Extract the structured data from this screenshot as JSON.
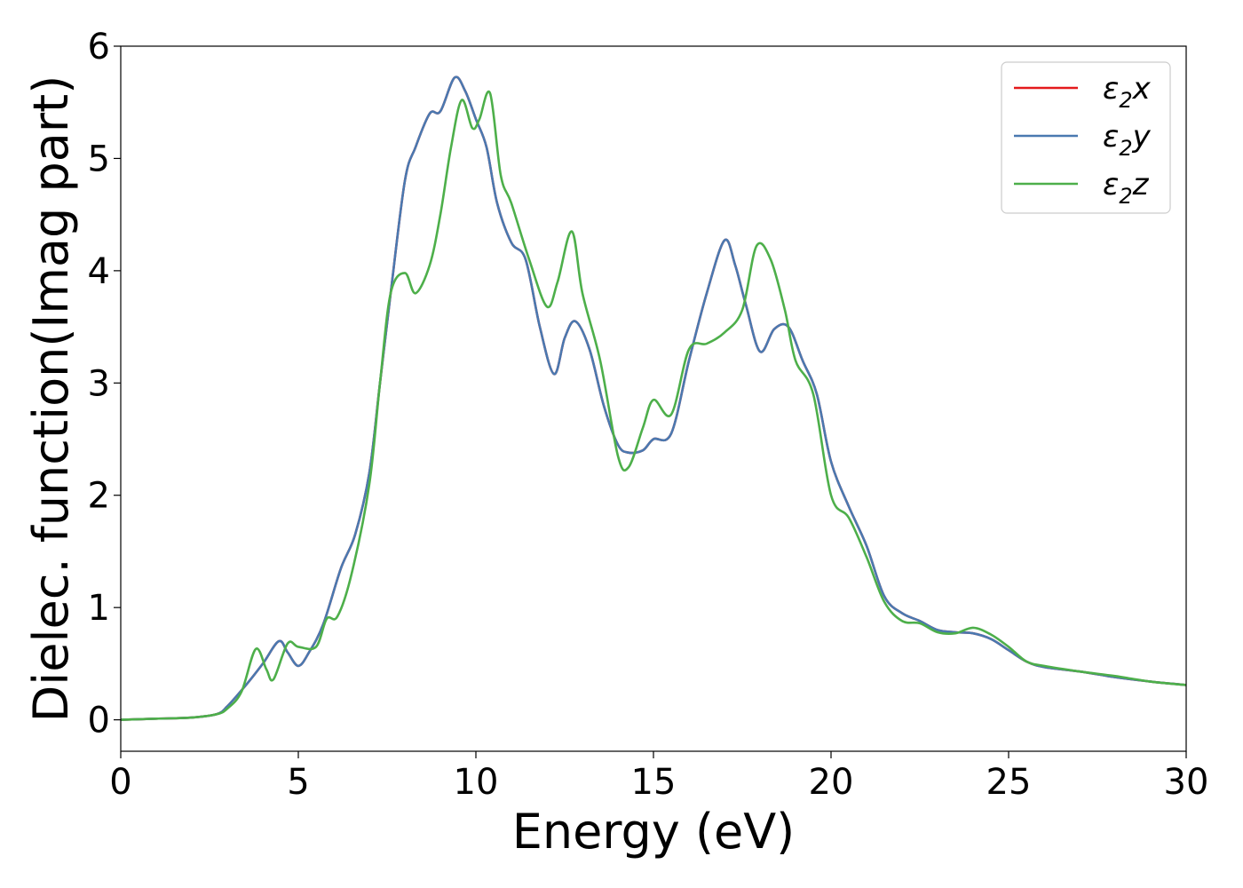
{
  "chart_data": {
    "type": "line",
    "xlabel": "Energy (eV)",
    "ylabel": "Dielec. function(Imag part)",
    "xlim": [
      0,
      30
    ],
    "ylim": [
      -0.28,
      6.0
    ],
    "xticks": [
      "0",
      "5",
      "10",
      "15",
      "20",
      "25",
      "30"
    ],
    "yticks": [
      "0",
      "1",
      "2",
      "3",
      "4",
      "5",
      "6"
    ],
    "grid": false,
    "legend_position": "top-right",
    "series": [
      {
        "name": "ε2x",
        "legend_main": "ε",
        "legend_sub": "2",
        "legend_suffix": "x",
        "color": "#e41a1c",
        "points": [
          [
            0,
            0
          ],
          [
            1,
            0.01
          ],
          [
            2,
            0.02
          ],
          [
            2.7,
            0.05
          ],
          [
            3,
            0.12
          ],
          [
            3.5,
            0.3
          ],
          [
            4,
            0.5
          ],
          [
            4.45,
            0.7
          ],
          [
            4.7,
            0.6
          ],
          [
            5,
            0.48
          ],
          [
            5.3,
            0.6
          ],
          [
            5.7,
            0.85
          ],
          [
            6.2,
            1.35
          ],
          [
            6.6,
            1.65
          ],
          [
            7,
            2.2
          ],
          [
            7.3,
            3
          ],
          [
            7.6,
            3.8
          ],
          [
            8,
            4.8
          ],
          [
            8.3,
            5.1
          ],
          [
            8.7,
            5.4
          ],
          [
            9,
            5.42
          ],
          [
            9.4,
            5.72
          ],
          [
            9.7,
            5.6
          ],
          [
            10,
            5.35
          ],
          [
            10.3,
            5.1
          ],
          [
            10.6,
            4.6
          ],
          [
            11,
            4.25
          ],
          [
            11.4,
            4.1
          ],
          [
            11.8,
            3.5
          ],
          [
            12.2,
            3.08
          ],
          [
            12.5,
            3.4
          ],
          [
            12.8,
            3.55
          ],
          [
            13.2,
            3.3
          ],
          [
            13.6,
            2.8
          ],
          [
            14,
            2.45
          ],
          [
            14.3,
            2.38
          ],
          [
            14.7,
            2.4
          ],
          [
            15,
            2.5
          ],
          [
            15.5,
            2.55
          ],
          [
            16,
            3.2
          ],
          [
            16.5,
            3.8
          ],
          [
            17,
            4.27
          ],
          [
            17.3,
            4.05
          ],
          [
            17.6,
            3.7
          ],
          [
            18,
            3.28
          ],
          [
            18.4,
            3.48
          ],
          [
            18.8,
            3.5
          ],
          [
            19.2,
            3.2
          ],
          [
            19.6,
            2.9
          ],
          [
            20,
            2.3
          ],
          [
            20.5,
            1.9
          ],
          [
            21,
            1.55
          ],
          [
            21.5,
            1.1
          ],
          [
            22,
            0.95
          ],
          [
            22.5,
            0.88
          ],
          [
            23,
            0.8
          ],
          [
            23.5,
            0.78
          ],
          [
            24,
            0.77
          ],
          [
            24.5,
            0.72
          ],
          [
            25,
            0.62
          ],
          [
            25.5,
            0.52
          ],
          [
            26,
            0.47
          ],
          [
            27,
            0.43
          ],
          [
            28,
            0.38
          ],
          [
            29,
            0.34
          ],
          [
            30,
            0.31
          ]
        ]
      },
      {
        "name": "ε2y",
        "legend_main": "ε",
        "legend_sub": "2",
        "legend_suffix": "y",
        "color": "#4a79b0",
        "points": [
          [
            0,
            0
          ],
          [
            1,
            0.01
          ],
          [
            2,
            0.02
          ],
          [
            2.7,
            0.05
          ],
          [
            3,
            0.12
          ],
          [
            3.5,
            0.3
          ],
          [
            4,
            0.5
          ],
          [
            4.45,
            0.7
          ],
          [
            4.7,
            0.6
          ],
          [
            5,
            0.48
          ],
          [
            5.3,
            0.6
          ],
          [
            5.7,
            0.85
          ],
          [
            6.2,
            1.35
          ],
          [
            6.6,
            1.65
          ],
          [
            7,
            2.2
          ],
          [
            7.3,
            3
          ],
          [
            7.6,
            3.8
          ],
          [
            8,
            4.8
          ],
          [
            8.3,
            5.1
          ],
          [
            8.7,
            5.4
          ],
          [
            9,
            5.42
          ],
          [
            9.4,
            5.72
          ],
          [
            9.7,
            5.6
          ],
          [
            10,
            5.35
          ],
          [
            10.3,
            5.1
          ],
          [
            10.6,
            4.6
          ],
          [
            11,
            4.25
          ],
          [
            11.4,
            4.1
          ],
          [
            11.8,
            3.5
          ],
          [
            12.2,
            3.08
          ],
          [
            12.5,
            3.4
          ],
          [
            12.8,
            3.55
          ],
          [
            13.2,
            3.3
          ],
          [
            13.6,
            2.8
          ],
          [
            14,
            2.45
          ],
          [
            14.3,
            2.38
          ],
          [
            14.7,
            2.4
          ],
          [
            15,
            2.5
          ],
          [
            15.5,
            2.55
          ],
          [
            16,
            3.2
          ],
          [
            16.5,
            3.8
          ],
          [
            17,
            4.27
          ],
          [
            17.3,
            4.05
          ],
          [
            17.6,
            3.7
          ],
          [
            18,
            3.28
          ],
          [
            18.4,
            3.48
          ],
          [
            18.8,
            3.5
          ],
          [
            19.2,
            3.2
          ],
          [
            19.6,
            2.9
          ],
          [
            20,
            2.3
          ],
          [
            20.5,
            1.9
          ],
          [
            21,
            1.55
          ],
          [
            21.5,
            1.1
          ],
          [
            22,
            0.95
          ],
          [
            22.5,
            0.88
          ],
          [
            23,
            0.8
          ],
          [
            23.5,
            0.78
          ],
          [
            24,
            0.77
          ],
          [
            24.5,
            0.72
          ],
          [
            25,
            0.62
          ],
          [
            25.5,
            0.52
          ],
          [
            26,
            0.47
          ],
          [
            27,
            0.43
          ],
          [
            28,
            0.38
          ],
          [
            29,
            0.34
          ],
          [
            30,
            0.31
          ]
        ]
      },
      {
        "name": "ε2z",
        "legend_main": "ε",
        "legend_sub": "2",
        "legend_suffix": "z",
        "color": "#4daf4a",
        "points": [
          [
            0,
            0
          ],
          [
            1,
            0.01
          ],
          [
            2,
            0.02
          ],
          [
            2.7,
            0.05
          ],
          [
            3,
            0.1
          ],
          [
            3.4,
            0.25
          ],
          [
            3.8,
            0.63
          ],
          [
            4.1,
            0.45
          ],
          [
            4.3,
            0.36
          ],
          [
            4.7,
            0.68
          ],
          [
            5,
            0.65
          ],
          [
            5.5,
            0.65
          ],
          [
            5.8,
            0.9
          ],
          [
            6.1,
            0.92
          ],
          [
            6.5,
            1.3
          ],
          [
            7,
            2.1
          ],
          [
            7.3,
            3
          ],
          [
            7.6,
            3.8
          ],
          [
            8,
            3.98
          ],
          [
            8.3,
            3.8
          ],
          [
            8.7,
            4.05
          ],
          [
            9,
            4.5
          ],
          [
            9.3,
            5.1
          ],
          [
            9.6,
            5.52
          ],
          [
            9.9,
            5.27
          ],
          [
            10.1,
            5.35
          ],
          [
            10.4,
            5.58
          ],
          [
            10.7,
            4.85
          ],
          [
            11,
            4.6
          ],
          [
            11.5,
            4.1
          ],
          [
            12,
            3.68
          ],
          [
            12.3,
            3.9
          ],
          [
            12.7,
            4.35
          ],
          [
            13,
            3.8
          ],
          [
            13.5,
            3.2
          ],
          [
            14,
            2.35
          ],
          [
            14.3,
            2.25
          ],
          [
            14.7,
            2.6
          ],
          [
            15,
            2.85
          ],
          [
            15.5,
            2.72
          ],
          [
            16,
            3.3
          ],
          [
            16.5,
            3.35
          ],
          [
            17,
            3.45
          ],
          [
            17.5,
            3.65
          ],
          [
            17.9,
            4.22
          ],
          [
            18.3,
            4.1
          ],
          [
            18.7,
            3.65
          ],
          [
            19,
            3.2
          ],
          [
            19.5,
            2.9
          ],
          [
            20,
            2.0
          ],
          [
            20.5,
            1.8
          ],
          [
            21,
            1.45
          ],
          [
            21.5,
            1.05
          ],
          [
            22,
            0.88
          ],
          [
            22.5,
            0.86
          ],
          [
            23,
            0.78
          ],
          [
            23.5,
            0.77
          ],
          [
            24,
            0.82
          ],
          [
            24.5,
            0.76
          ],
          [
            25,
            0.65
          ],
          [
            25.5,
            0.52
          ],
          [
            26,
            0.48
          ],
          [
            27,
            0.43
          ],
          [
            28,
            0.39
          ],
          [
            29,
            0.34
          ],
          [
            30,
            0.31
          ]
        ]
      }
    ]
  }
}
